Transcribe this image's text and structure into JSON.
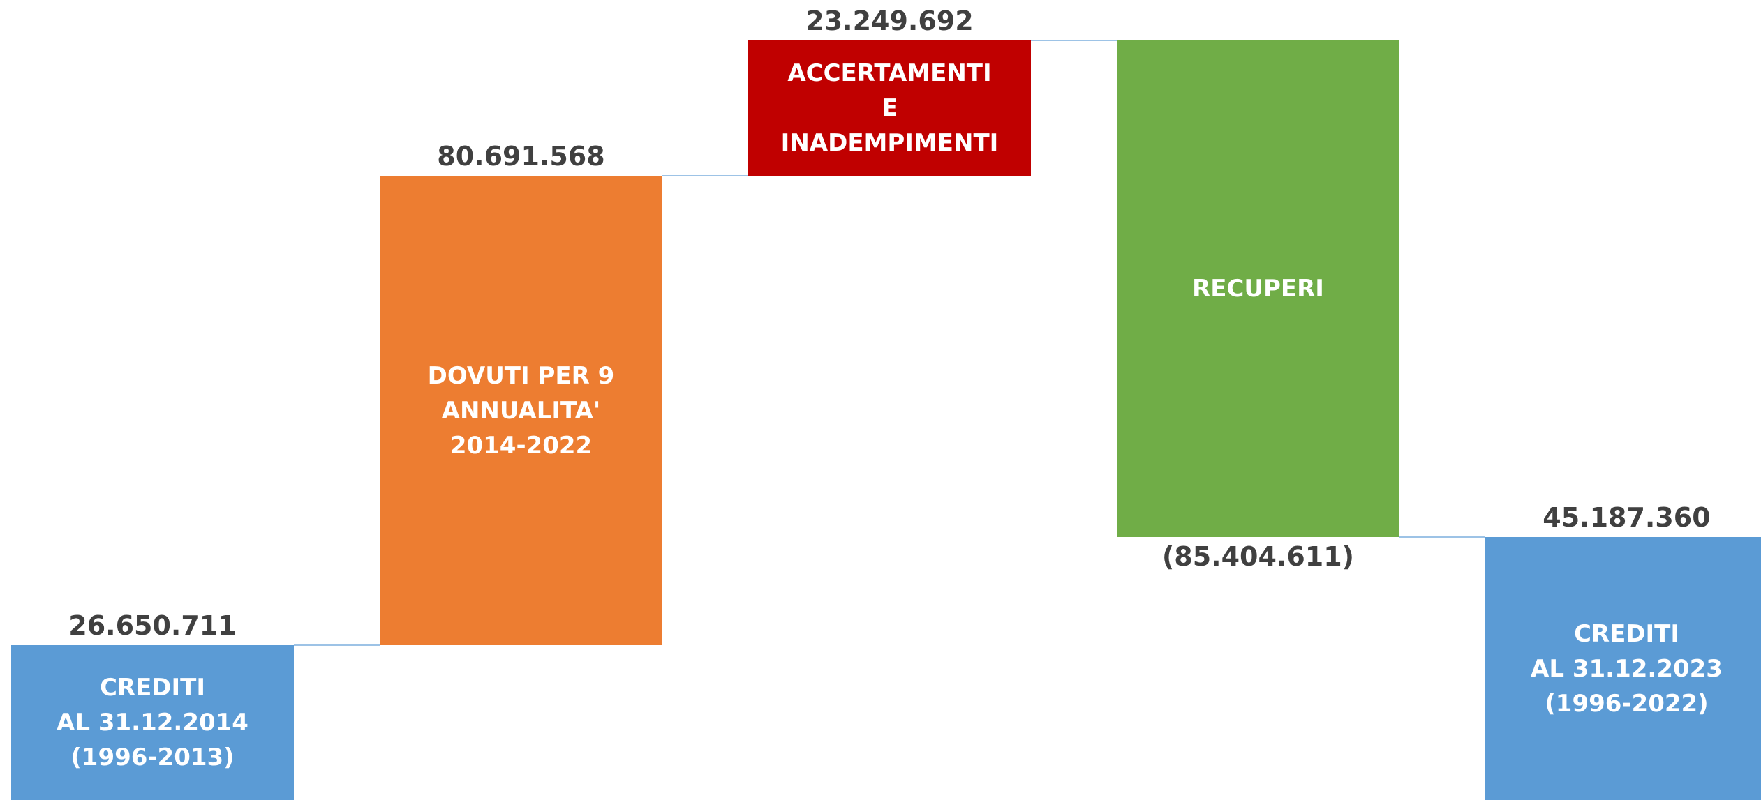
{
  "chart_data": {
    "type": "waterfall",
    "categories": [
      "CREDITI\nAL 31.12.2014\n(1996-2013)",
      "DOVUTI PER 9\nANNUALITA'\n2014-2022",
      "ACCERTAMENTI\nE\nINADEMPIMENTI",
      "RECUPERI",
      "CREDITI\nAL 31.12.2023\n(1996-2022)"
    ],
    "values": [
      26650711,
      80691568,
      23249692,
      -85404611,
      45187360
    ],
    "value_labels": [
      "26.650.711",
      "80.691.568",
      "23.249.692",
      "(85.404.611)",
      "45.187.360"
    ],
    "is_total": [
      false,
      false,
      false,
      false,
      true
    ],
    "colors": [
      "#5b9bd5",
      "#ed7d31",
      "#c00000",
      "#70ad47",
      "#5b9bd5"
    ],
    "connector_color": "#9dc3e6",
    "ylim": [
      0,
      137600000
    ]
  }
}
